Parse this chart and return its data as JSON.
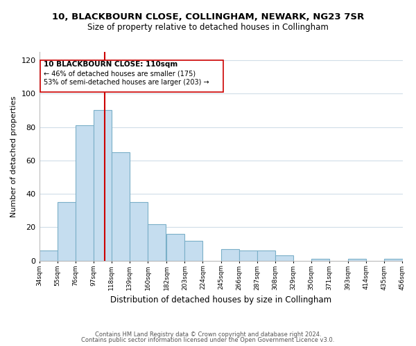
{
  "title": "10, BLACKBOURN CLOSE, COLLINGHAM, NEWARK, NG23 7SR",
  "subtitle": "Size of property relative to detached houses in Collingham",
  "xlabel": "Distribution of detached houses by size in Collingham",
  "ylabel": "Number of detached properties",
  "bar_left_edges": [
    34,
    55,
    76,
    97,
    118,
    139,
    160,
    182,
    203,
    224,
    245,
    266,
    287,
    308,
    329,
    350,
    371,
    393,
    414,
    435
  ],
  "bar_heights": [
    6,
    35,
    81,
    90,
    65,
    35,
    22,
    16,
    12,
    0,
    7,
    6,
    6,
    3,
    0,
    1,
    0,
    1,
    0,
    1
  ],
  "bin_width": 21,
  "bar_color": "#c5ddef",
  "bar_edge_color": "#7aafc8",
  "tick_labels": [
    "34sqm",
    "55sqm",
    "76sqm",
    "97sqm",
    "118sqm",
    "139sqm",
    "160sqm",
    "182sqm",
    "203sqm",
    "224sqm",
    "245sqm",
    "266sqm",
    "287sqm",
    "308sqm",
    "329sqm",
    "350sqm",
    "371sqm",
    "393sqm",
    "414sqm",
    "435sqm",
    "456sqm"
  ],
  "ylim": [
    0,
    125
  ],
  "yticks": [
    0,
    20,
    40,
    60,
    80,
    100,
    120
  ],
  "vline_x": 110,
  "vline_color": "#cc0000",
  "annotation_title": "10 BLACKBOURN CLOSE: 110sqm",
  "annotation_line1": "← 46% of detached houses are smaller (175)",
  "annotation_line2": "53% of semi-detached houses are larger (203) →",
  "footer1": "Contains HM Land Registry data © Crown copyright and database right 2024.",
  "footer2": "Contains public sector information licensed under the Open Government Licence v3.0.",
  "background_color": "#ffffff",
  "grid_color": "#d0dde8"
}
